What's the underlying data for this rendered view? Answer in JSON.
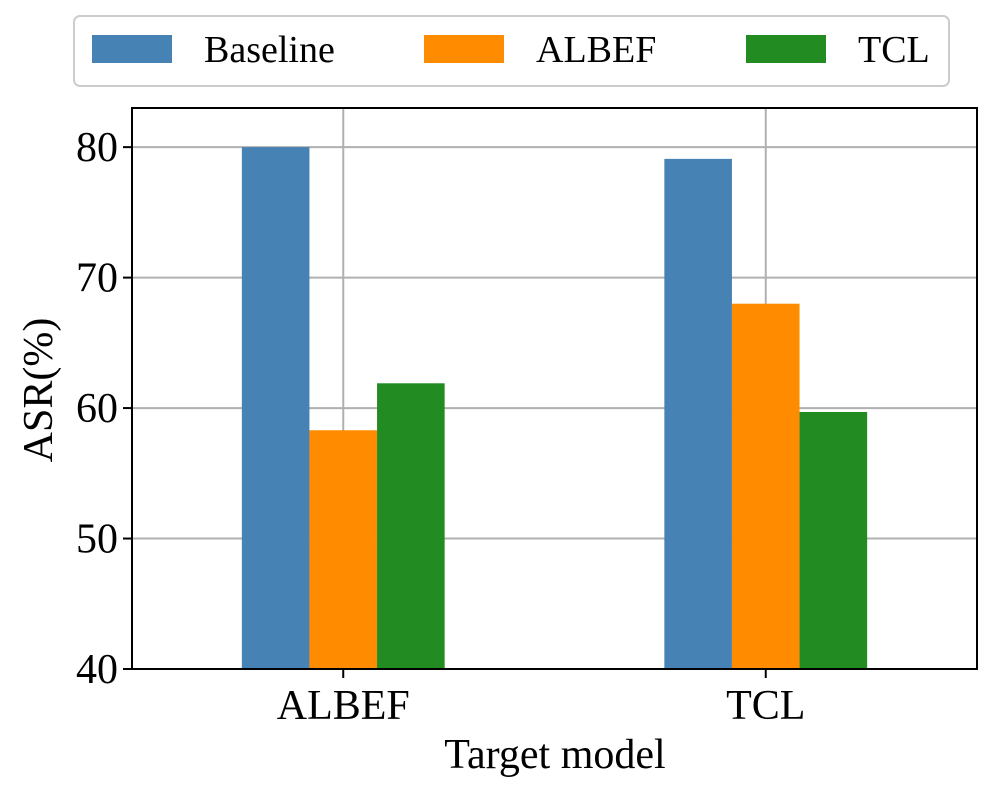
{
  "chart_data": {
    "type": "bar",
    "xlabel": "Target model",
    "ylabel": "ASR(%)",
    "categories": [
      "ALBEF",
      "TCL"
    ],
    "series": [
      {
        "name": "Baseline",
        "color": "#4682b4",
        "values": [
          80.0,
          79.1
        ]
      },
      {
        "name": "ALBEF",
        "color": "#ff8c00",
        "values": [
          58.3,
          68.0
        ]
      },
      {
        "name": "TCL",
        "color": "#228b22",
        "values": [
          61.9,
          59.7
        ]
      }
    ],
    "ylim": [
      40,
      83
    ],
    "yticks": [
      40,
      50,
      60,
      70,
      80
    ],
    "grid": true,
    "legend": "top"
  }
}
